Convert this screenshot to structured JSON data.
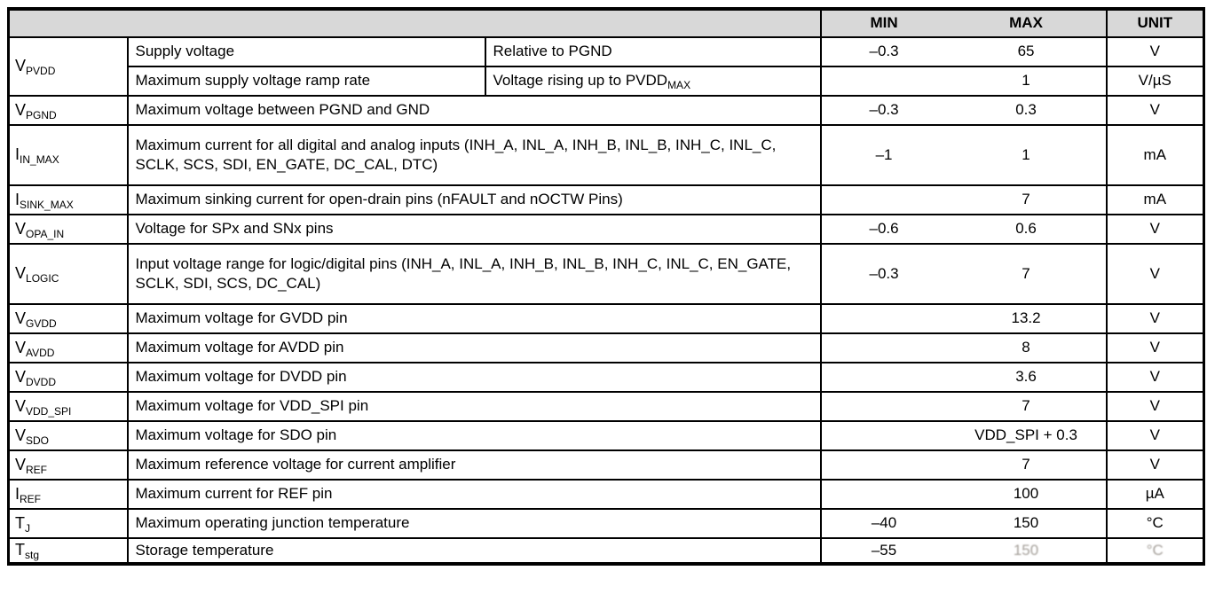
{
  "table": {
    "title_semantic": "absolute-maximum-ratings",
    "header": {
      "min": "MIN",
      "max": "MAX",
      "unit": "UNIT"
    },
    "rows": [
      {
        "symbol": {
          "base": "V",
          "sub": "PVDD"
        },
        "description": "Supply voltage",
        "condition": "Relative to PGND",
        "min": "–0.3",
        "max": "65",
        "unit": "V"
      },
      {
        "description": "Maximum supply voltage ramp rate",
        "condition": "Voltage rising up to PVDD",
        "condition_sub": "MAX",
        "min": "",
        "max": "1",
        "unit": "V/µS"
      },
      {
        "symbol": {
          "base": "V",
          "sub": "PGND"
        },
        "description": "Maximum voltage between PGND and GND",
        "min": "–0.3",
        "max": "0.3",
        "unit": "V"
      },
      {
        "symbol": {
          "base": "I",
          "sub": "IN_MAX"
        },
        "description": "Maximum current for all digital and analog inputs (INH_A, INL_A, INH_B, INL_B, INH_C, INL_C, SCLK, SCS, SDI, EN_GATE, DC_CAL, DTC)",
        "min": "–1",
        "max": "1",
        "unit": "mA"
      },
      {
        "symbol": {
          "base": "I",
          "sub": "SINK_MAX"
        },
        "description": "Maximum sinking current for open-drain pins (nFAULT and nOCTW Pins)",
        "min": "",
        "max": "7",
        "unit": "mA"
      },
      {
        "symbol": {
          "base": "V",
          "sub": "OPA_IN"
        },
        "description": "Voltage for SPx and SNx pins",
        "min": "–0.6",
        "max": "0.6",
        "unit": "V"
      },
      {
        "symbol": {
          "base": "V",
          "sub": "LOGIC"
        },
        "description": "Input voltage range for logic/digital pins (INH_A, INL_A, INH_B, INL_B, INH_C, INL_C, EN_GATE, SCLK, SDI, SCS, DC_CAL)",
        "min": "–0.3",
        "max": "7",
        "unit": "V"
      },
      {
        "symbol": {
          "base": "V",
          "sub": "GVDD"
        },
        "description": "Maximum voltage for GVDD pin",
        "min": "",
        "max": "13.2",
        "unit": "V"
      },
      {
        "symbol": {
          "base": "V",
          "sub": "AVDD"
        },
        "description": "Maximum voltage for AVDD pin",
        "min": "",
        "max": "8",
        "unit": "V"
      },
      {
        "symbol": {
          "base": "V",
          "sub": "DVDD"
        },
        "description": "Maximum voltage for DVDD pin",
        "min": "",
        "max": "3.6",
        "unit": "V"
      },
      {
        "symbol": {
          "base": "V",
          "sub": "VDD_SPI"
        },
        "description": "Maximum voltage for VDD_SPI pin",
        "min": "",
        "max": "7",
        "unit": "V"
      },
      {
        "symbol": {
          "base": "V",
          "sub": "SDO"
        },
        "description": "Maximum voltage for SDO pin",
        "min": "",
        "max": "VDD_SPI + 0.3",
        "unit": "V"
      },
      {
        "symbol": {
          "base": "V",
          "sub": "REF"
        },
        "description": "Maximum reference voltage for current amplifier",
        "min": "",
        "max": "7",
        "unit": "V"
      },
      {
        "symbol": {
          "base": "I",
          "sub": "REF"
        },
        "description": "Maximum current for REF pin",
        "min": "",
        "max": "100",
        "unit": "µA"
      },
      {
        "symbol": {
          "base": "T",
          "sub": "J"
        },
        "description": "Maximum operating junction temperature",
        "min": "–40",
        "max": "150",
        "unit": "°C"
      },
      {
        "symbol": {
          "base": "T",
          "sub": "stg"
        },
        "description": "Storage temperature",
        "min": "–55",
        "max": "150",
        "unit": "°C",
        "faded": true
      }
    ],
    "colors": {
      "header_bg": "#d8d8d8",
      "border": "#000000",
      "faded_text": "#a49f99"
    }
  }
}
